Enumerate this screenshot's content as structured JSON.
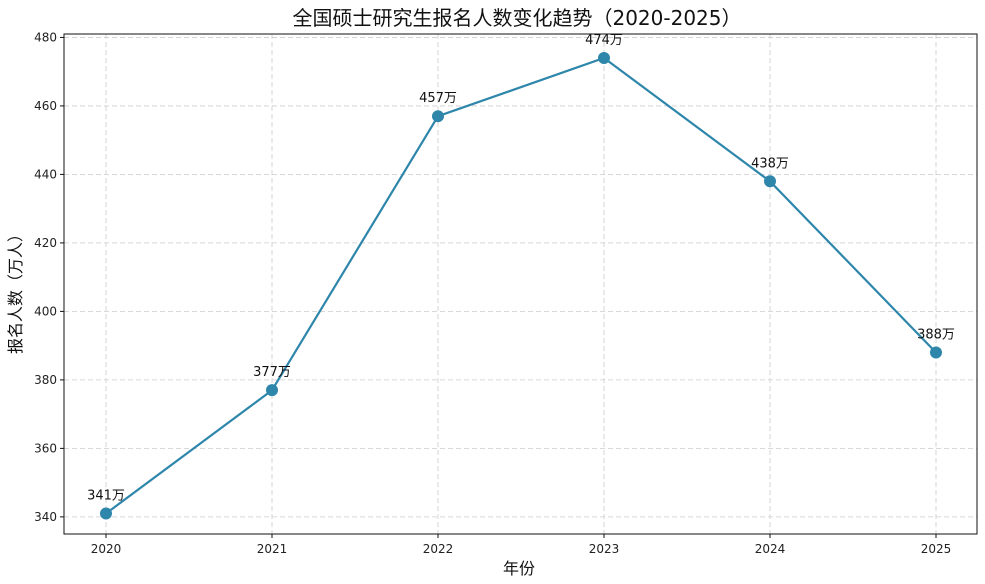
{
  "chart_data": {
    "type": "line",
    "title": "全国硕士研究生报名人数变化趋势（2020-2025）",
    "xlabel": "年份",
    "ylabel": "报名人数（万人）",
    "x": [
      "2020",
      "2021",
      "2022",
      "2023",
      "2024",
      "2025"
    ],
    "series": [
      {
        "values": [
          341,
          377,
          457,
          474,
          438,
          388
        ],
        "color": "#2e86ab",
        "data_labels": [
          "341万",
          "377万",
          "457万",
          "474万",
          "438万",
          "388万"
        ]
      }
    ],
    "ylim": [
      335,
      481
    ],
    "yticks": [
      340,
      360,
      380,
      400,
      420,
      440,
      460,
      480
    ],
    "grid": true,
    "grid_style": "dashed"
  }
}
